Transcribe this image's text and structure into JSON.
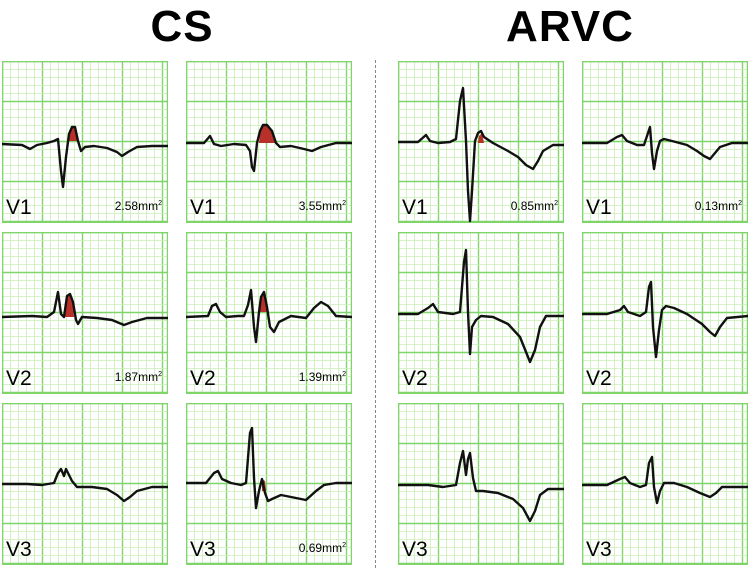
{
  "groups": [
    {
      "title": "CS",
      "panels": [
        {
          "lead": "V1",
          "area": "2.58mm",
          "area_unit_sup": "2",
          "trace": "cs_v1_a"
        },
        {
          "lead": "V1",
          "area": "3.55mm",
          "area_unit_sup": "2",
          "trace": "cs_v1_b"
        },
        {
          "lead": "V2",
          "area": "1.87mm",
          "area_unit_sup": "2",
          "trace": "cs_v2_a"
        },
        {
          "lead": "V2",
          "area": "1.39mm",
          "area_unit_sup": "2",
          "trace": "cs_v2_b"
        },
        {
          "lead": "V3",
          "area": "",
          "area_unit_sup": "",
          "trace": "cs_v3_a"
        },
        {
          "lead": "V3",
          "area": "0.69mm",
          "area_unit_sup": "2",
          "trace": "cs_v3_b"
        }
      ]
    },
    {
      "title": "ARVC",
      "panels": [
        {
          "lead": "V1",
          "area": "0.85mm",
          "area_unit_sup": "2",
          "trace": "arvc_v1_a"
        },
        {
          "lead": "V1",
          "area": "0.13mm",
          "area_unit_sup": "2",
          "trace": "arvc_v1_b"
        },
        {
          "lead": "V2",
          "area": "",
          "area_unit_sup": "",
          "trace": "arvc_v2_a"
        },
        {
          "lead": "V2",
          "area": "",
          "area_unit_sup": "",
          "trace": "arvc_v2_b"
        },
        {
          "lead": "V3",
          "area": "",
          "area_unit_sup": "",
          "trace": "arvc_v3_a"
        },
        {
          "lead": "V3",
          "area": "",
          "area_unit_sup": "",
          "trace": "arvc_v3_b"
        }
      ]
    }
  ],
  "colors": {
    "grid_minor": "#c8efb6",
    "grid_major": "#7fd46a",
    "trace": "#111111",
    "highlight": "#b8302a",
    "background": "#ffffff"
  }
}
